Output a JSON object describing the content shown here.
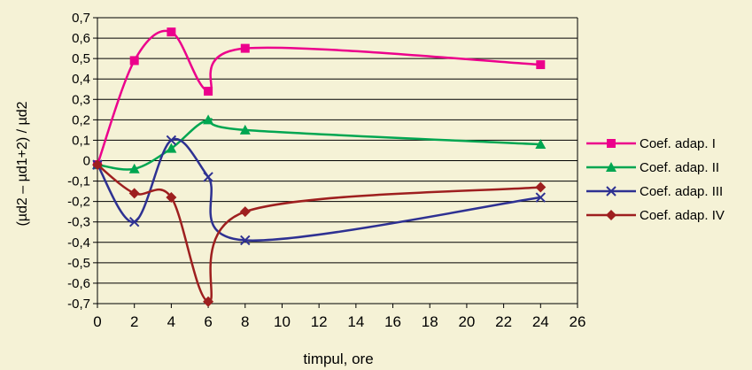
{
  "chart_data": {
    "type": "line",
    "title": "",
    "xlabel": "timpul, ore",
    "ylabel": "(µd2 – µd1+2) / µd2",
    "xlim": [
      0,
      26
    ],
    "ylim": [
      -0.7,
      0.7
    ],
    "x_ticks": [
      "0",
      "2",
      "4",
      "6",
      "8",
      "10",
      "12",
      "14",
      "16",
      "18",
      "20",
      "22",
      "24",
      "26"
    ],
    "y_ticks": [
      "0,7",
      "0,6",
      "0,5",
      "0,4",
      "0,3",
      "0,2",
      "0,1",
      "0",
      "-0,1",
      "-0,2",
      "-0,3",
      "-0,4",
      "-0,5",
      "-0,6",
      "-0,7"
    ],
    "grid": "horizontal",
    "legend": "right",
    "background": "#f5f2d6",
    "series": [
      {
        "name": "Coef. adap. I",
        "color": "#ec008c",
        "marker": "square",
        "points": [
          [
            0,
            -0.02
          ],
          [
            2,
            0.49
          ],
          [
            4,
            0.63
          ],
          [
            6,
            0.34
          ],
          [
            8,
            0.55
          ],
          [
            24,
            0.47
          ]
        ]
      },
      {
        "name": "Coef. adap. II",
        "color": "#00a651",
        "marker": "triangle",
        "points": [
          [
            0,
            -0.02
          ],
          [
            2,
            -0.04
          ],
          [
            4,
            0.06
          ],
          [
            6,
            0.2
          ],
          [
            8,
            0.15
          ],
          [
            24,
            0.08
          ]
        ]
      },
      {
        "name": "Coef. adap. III",
        "color": "#2e3192",
        "marker": "x",
        "points": [
          [
            0,
            -0.02
          ],
          [
            2,
            -0.3
          ],
          [
            4,
            0.1
          ],
          [
            6,
            -0.08
          ],
          [
            8,
            -0.39
          ],
          [
            24,
            -0.18
          ]
        ]
      },
      {
        "name": "Coef. adap. IV",
        "color": "#9e1f1f",
        "marker": "diamond",
        "points": [
          [
            0,
            -0.02
          ],
          [
            2,
            -0.16
          ],
          [
            4,
            -0.18
          ],
          [
            6,
            -0.69
          ],
          [
            8,
            -0.25
          ],
          [
            24,
            -0.13
          ]
        ]
      }
    ]
  }
}
